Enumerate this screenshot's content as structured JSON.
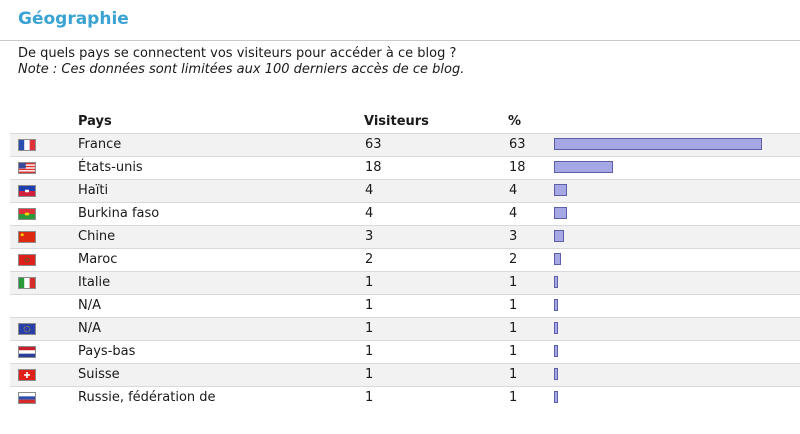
{
  "section": {
    "title": "Géographie",
    "question": "De quels pays se connectent vos visiteurs pour accéder à ce blog ?",
    "note": "Note : Ces données sont limitées aux 100 derniers accès de ce blog."
  },
  "table": {
    "headers": {
      "country": "Pays",
      "visitors": "Visiteurs",
      "percent": "%"
    },
    "rows": [
      {
        "flag": "france-flag-icon",
        "country": "France",
        "visitors": "63",
        "percent": "63",
        "share": 0.63
      },
      {
        "flag": "usa-flag-icon",
        "country": "États-unis",
        "visitors": "18",
        "percent": "18",
        "share": 0.18
      },
      {
        "flag": "haiti-flag-icon",
        "country": "Haïti",
        "visitors": "4",
        "percent": "4",
        "share": 0.04
      },
      {
        "flag": "burkina-faso-flag-icon",
        "country": "Burkina faso",
        "visitors": "4",
        "percent": "4",
        "share": 0.04
      },
      {
        "flag": "china-flag-icon",
        "country": "Chine",
        "visitors": "3",
        "percent": "3",
        "share": 0.03
      },
      {
        "flag": "morocco-flag-icon",
        "country": "Maroc",
        "visitors": "2",
        "percent": "2",
        "share": 0.02
      },
      {
        "flag": "italy-flag-icon",
        "country": "Italie",
        "visitors": "1",
        "percent": "1",
        "share": 0.01
      },
      {
        "flag": "",
        "country": "N/A",
        "visitors": "1",
        "percent": "1",
        "share": 0.01
      },
      {
        "flag": "eu-flag-icon",
        "country": "N/A",
        "visitors": "1",
        "percent": "1",
        "share": 0.01
      },
      {
        "flag": "netherlands-flag-icon",
        "country": "Pays-bas",
        "visitors": "1",
        "percent": "1",
        "share": 0.01
      },
      {
        "flag": "switzerland-flag-icon",
        "country": "Suisse",
        "visitors": "1",
        "percent": "1",
        "share": 0.01
      },
      {
        "flag": "russia-flag-icon",
        "country": "Russie, fédération de",
        "visitors": "1",
        "percent": "1",
        "share": 0.01
      }
    ]
  },
  "colors": {
    "title": "#3aa3d3",
    "bar_fill": "#a6a8e6",
    "bar_border": "#5c5fa8",
    "row_alt": "#f2f2f2"
  }
}
